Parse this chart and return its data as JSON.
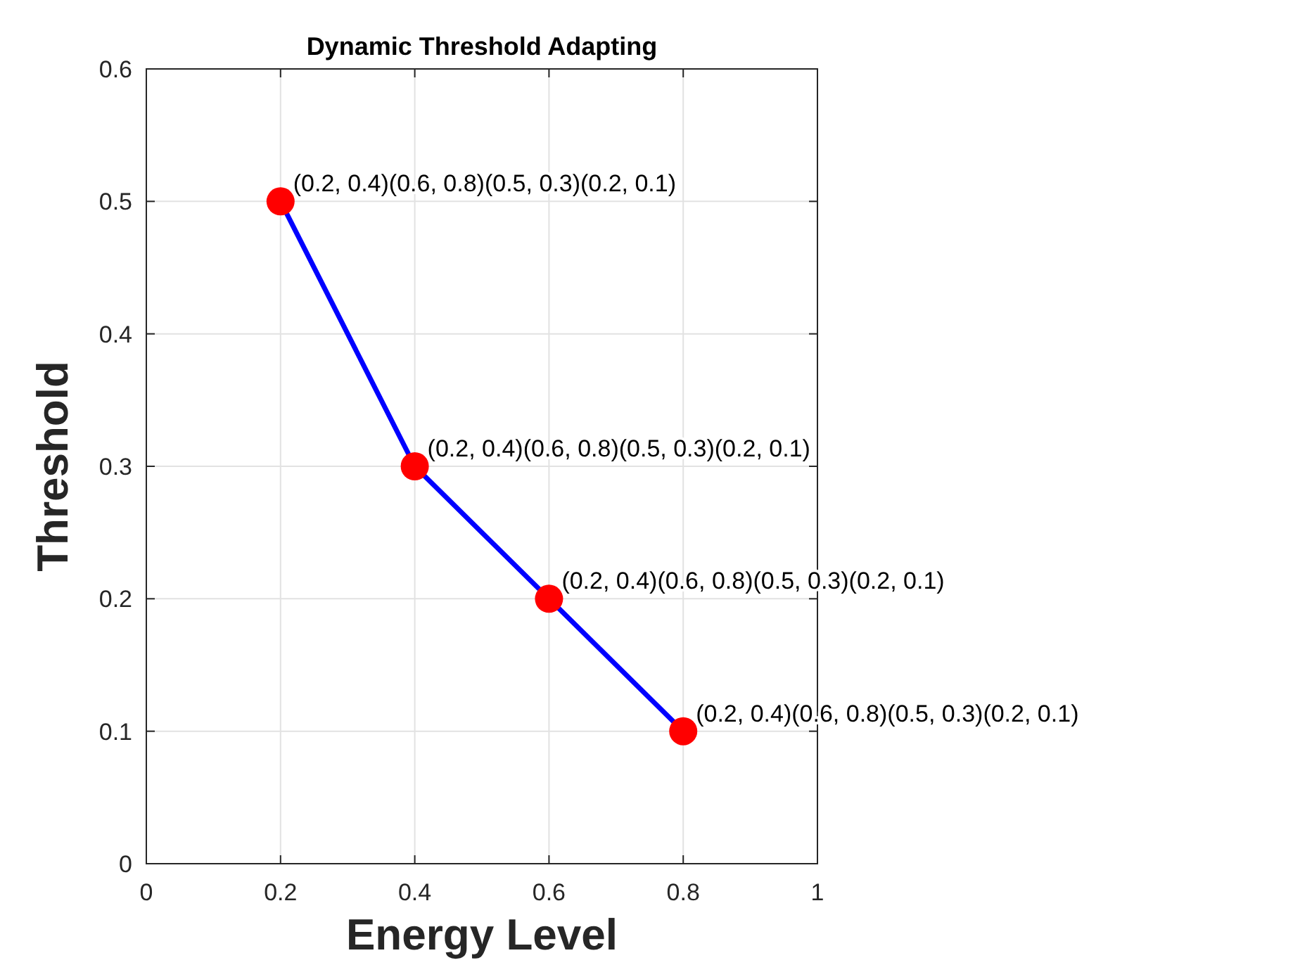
{
  "chart_data": {
    "type": "line",
    "title": "Dynamic Threshold Adapting",
    "xlabel": "Energy Level",
    "ylabel": "Threshold",
    "x": [
      0.2,
      0.4,
      0.6,
      0.8
    ],
    "series": [
      {
        "color": "#0000ff",
        "values": [
          0.5,
          0.3,
          0.2,
          0.1
        ]
      },
      {
        "type": "scatter",
        "color": "#ff0000",
        "values": [
          0.5,
          0.3,
          0.2,
          0.1
        ],
        "marker": "circle"
      }
    ],
    "xlim": [
      0,
      1
    ],
    "xticks": [
      0,
      0.2,
      0.4,
      0.6,
      0.8,
      1
    ],
    "ylim": [
      0,
      0.6
    ],
    "yticks": [
      0,
      0.1,
      0.2,
      0.3,
      0.4,
      0.5,
      0.6
    ],
    "grid": true,
    "line_style": "solid",
    "annotations": [
      {
        "text": "(0.2, 0.4)(0.6, 0.8)(0.5, 0.3)(0.2, 0.1)",
        "x": 0.2,
        "y": 0.5
      },
      {
        "text": "(0.2, 0.4)(0.6, 0.8)(0.5, 0.3)(0.2, 0.1)",
        "x": 0.4,
        "y": 0.3
      },
      {
        "text": "(0.2, 0.4)(0.6, 0.8)(0.5, 0.3)(0.2, 0.1)",
        "x": 0.6,
        "y": 0.2
      },
      {
        "text": "(0.2, 0.4)(0.6, 0.8)(0.5, 0.3)(0.2, 0.1)",
        "x": 0.8,
        "y": 0.1
      }
    ]
  }
}
